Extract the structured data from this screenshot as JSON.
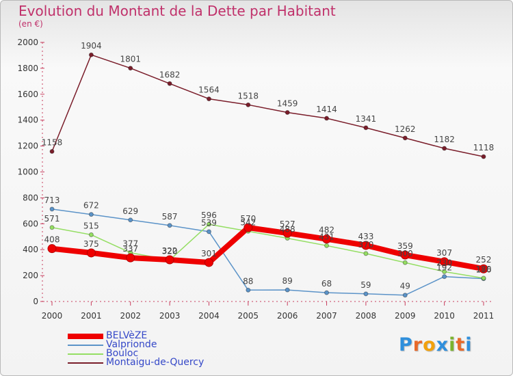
{
  "header": {
    "title": "Evolution du Montant de la Dette par Habitant",
    "unit": "(en €)"
  },
  "brand": {
    "name": "Proxiti",
    "letters": [
      "P",
      "r",
      "o",
      "x",
      "i",
      "t",
      "i"
    ],
    "letter_colors": [
      "#2f8fdc",
      "#e8692a",
      "#f2a10c",
      "#2f8fdc",
      "#7bb32e",
      "#e8692a",
      "#2f8fdc"
    ]
  },
  "chart_data": {
    "type": "line",
    "title": "Evolution du Montant de la Dette par Habitant",
    "subtitle": "(en €)",
    "xlabel": "",
    "ylabel": "",
    "x": [
      2000,
      2001,
      2002,
      2003,
      2004,
      2005,
      2006,
      2007,
      2008,
      2009,
      2010,
      2011
    ],
    "ylim": [
      0,
      2000
    ],
    "yticks": [
      0,
      200,
      400,
      600,
      800,
      1000,
      1200,
      1400,
      1600,
      1800,
      2000
    ],
    "grid": false,
    "legend_position": "bottom-left",
    "series": [
      {
        "name": "BELVèZE",
        "color": "#ee0000",
        "values": [
          408,
          375,
          337,
          322,
          301,
          570,
          527,
          482,
          433,
          359,
          307,
          252
        ],
        "labels": [
          "408",
          "375",
          "337",
          "322",
          "301",
          "570",
          "527",
          "482",
          "433",
          "359",
          "307",
          "252"
        ]
      },
      {
        "name": "Valprionde",
        "color": "#5b93c8",
        "values": [
          713,
          672,
          629,
          587,
          539,
          88,
          89,
          68,
          59,
          49,
          192,
          176
        ],
        "labels": [
          "713",
          "672",
          "629",
          "587",
          "539",
          "88",
          "89",
          "68",
          "59",
          "49",
          "192",
          "176"
        ]
      },
      {
        "name": "Bouloc",
        "color": "#94de62",
        "values": [
          571,
          515,
          377,
          320,
          596,
          542,
          488,
          431,
          370,
          300,
          230,
          180
        ],
        "labels": [
          "571",
          "515",
          "377",
          "320",
          "596",
          "542",
          "488",
          "431",
          "370",
          "300",
          "230",
          "180"
        ]
      },
      {
        "name": "Montaigu-de-Quercy",
        "color": "#7a1d2a",
        "values": [
          1158,
          1904,
          1801,
          1682,
          1564,
          1518,
          1459,
          1414,
          1341,
          1262,
          1182,
          1118
        ],
        "labels": [
          "1158",
          "1904",
          "1801",
          "1682",
          "1564",
          "1518",
          "1459",
          "1414",
          "1341",
          "1262",
          "1182",
          "1118"
        ]
      }
    ]
  }
}
